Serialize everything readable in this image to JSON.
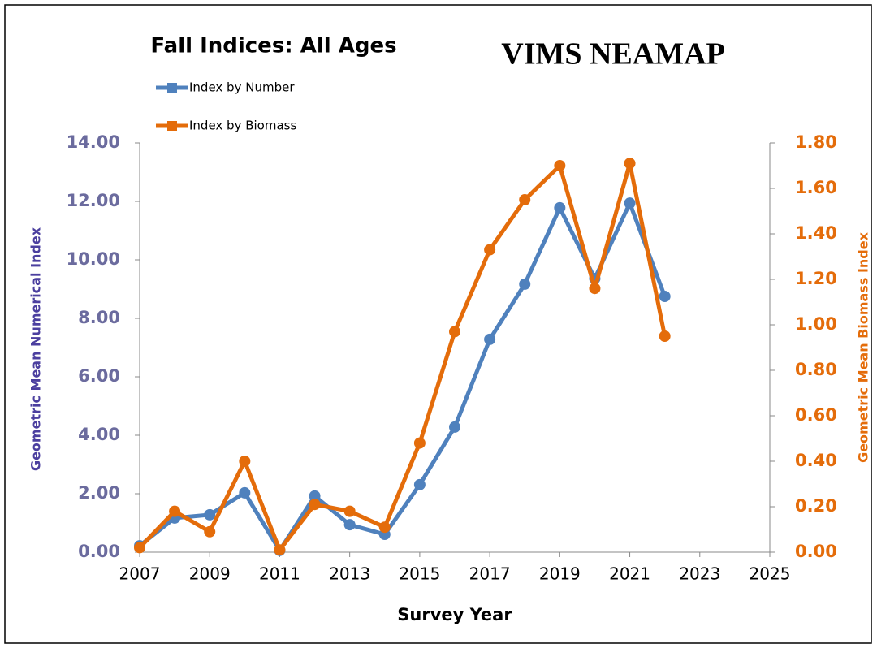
{
  "chart_data": {
    "type": "line",
    "title": "Fall Indices:  All Ages",
    "subtitle": "VIMS NEAMAP",
    "x_label": "Survey Year",
    "y_label": "Geometric Mean Numerical Index",
    "y2_label": "Geometric Mean Biomass Index",
    "x": [
      2007,
      2008,
      2009,
      2010,
      2011,
      2012,
      2013,
      2014,
      2015,
      2016,
      2017,
      2018,
      2019,
      2020,
      2021,
      2022
    ],
    "series": [
      {
        "name": "Index by Number",
        "color": "#4f81bd",
        "axis": "y",
        "values": [
          0.22,
          1.17,
          1.28,
          2.03,
          0.06,
          1.92,
          0.94,
          0.61,
          2.31,
          4.28,
          7.28,
          9.17,
          11.78,
          9.36,
          11.94,
          8.75
        ]
      },
      {
        "name": "Index by Biomass",
        "color": "#e46c0a",
        "axis": "y2",
        "values": [
          0.02,
          0.18,
          0.09,
          0.4,
          0.01,
          0.21,
          0.18,
          0.11,
          0.48,
          0.97,
          1.33,
          1.55,
          1.7,
          1.16,
          1.71,
          0.95
        ]
      }
    ],
    "xlim": [
      2007,
      2025
    ],
    "xticks": [
      2007,
      2009,
      2011,
      2013,
      2015,
      2017,
      2019,
      2021,
      2023,
      2025
    ],
    "ylim": [
      0,
      14
    ],
    "yticks": [
      {
        "value": 0,
        "label": "0.00"
      },
      {
        "value": 2,
        "label": "2.00"
      },
      {
        "value": 4,
        "label": "4.00"
      },
      {
        "value": 6,
        "label": "6.00"
      },
      {
        "value": 8,
        "label": "8.00"
      },
      {
        "value": 10,
        "label": "10.00"
      },
      {
        "value": 12,
        "label": "12.00"
      },
      {
        "value": 14,
        "label": "14.00"
      }
    ],
    "y2lim": [
      0,
      1.8
    ],
    "y2ticks": [
      {
        "value": 0,
        "label": "0.00"
      },
      {
        "value": 0.2,
        "label": "0.20"
      },
      {
        "value": 0.4,
        "label": "0.40"
      },
      {
        "value": 0.6,
        "label": "0.60"
      },
      {
        "value": 0.8,
        "label": "0.80"
      },
      {
        "value": 1.0,
        "label": "1.00"
      },
      {
        "value": 1.2,
        "label": "1.20"
      },
      {
        "value": 1.4,
        "label": "1.40"
      },
      {
        "value": 1.6,
        "label": "1.60"
      },
      {
        "value": 1.8,
        "label": "1.80"
      }
    ],
    "grid": false,
    "legend": "top-left"
  }
}
